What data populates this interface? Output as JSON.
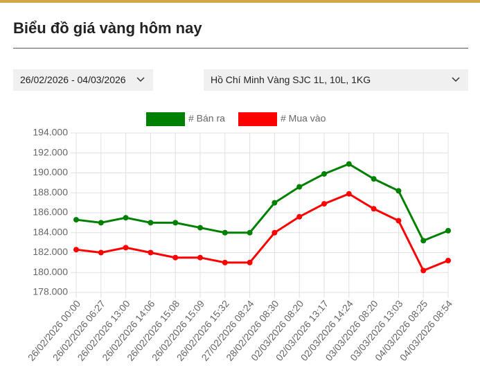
{
  "header": {
    "title": "Biểu đồ giá vàng hôm nay"
  },
  "filters": {
    "date_range": "26/02/2026 - 04/03/2026",
    "product": "Hồ Chí Minh Vàng SJC 1L, 10L, 1KG"
  },
  "chart_data": {
    "type": "line",
    "categories": [
      "26/02/2026 00:00",
      "26/02/2026 06:27",
      "26/02/2026 13:00",
      "26/02/2026 14:06",
      "26/02/2026 15:08",
      "26/02/2026 15:09",
      "26/02/2026 15:32",
      "27/02/2026 08:24",
      "28/02/2026 08:30",
      "02/03/2026 08:20",
      "02/03/2026 13:17",
      "02/03/2026 14:24",
      "03/03/2026 08:20",
      "03/03/2026 13:03",
      "04/03/2026 08:25",
      "04/03/2026 08:54"
    ],
    "series": [
      {
        "name": "# Bán ra",
        "color": "#008000",
        "values": [
          185300,
          185000,
          185500,
          185000,
          185000,
          184500,
          184000,
          184000,
          187000,
          188600,
          189900,
          190900,
          189400,
          188200,
          183200,
          184200
        ]
      },
      {
        "name": "# Mua vào",
        "color": "#ff0000",
        "values": [
          182300,
          182000,
          182500,
          182000,
          181500,
          181500,
          181000,
          181000,
          184000,
          185600,
          186900,
          187900,
          186400,
          185200,
          180200,
          181200
        ]
      }
    ],
    "ylim": [
      178000,
      194000
    ],
    "yticks": [
      {
        "value": 178000,
        "label": "178.000"
      },
      {
        "value": 180000,
        "label": "180.000"
      },
      {
        "value": 182000,
        "label": "182.000"
      },
      {
        "value": 184000,
        "label": "184.000"
      },
      {
        "value": 186000,
        "label": "186.000"
      },
      {
        "value": 188000,
        "label": "188.000"
      },
      {
        "value": 190000,
        "label": "190.000"
      },
      {
        "value": 192000,
        "label": "192.000"
      },
      {
        "value": 194000,
        "label": "194.000"
      }
    ],
    "grid": true,
    "legend": "top"
  }
}
